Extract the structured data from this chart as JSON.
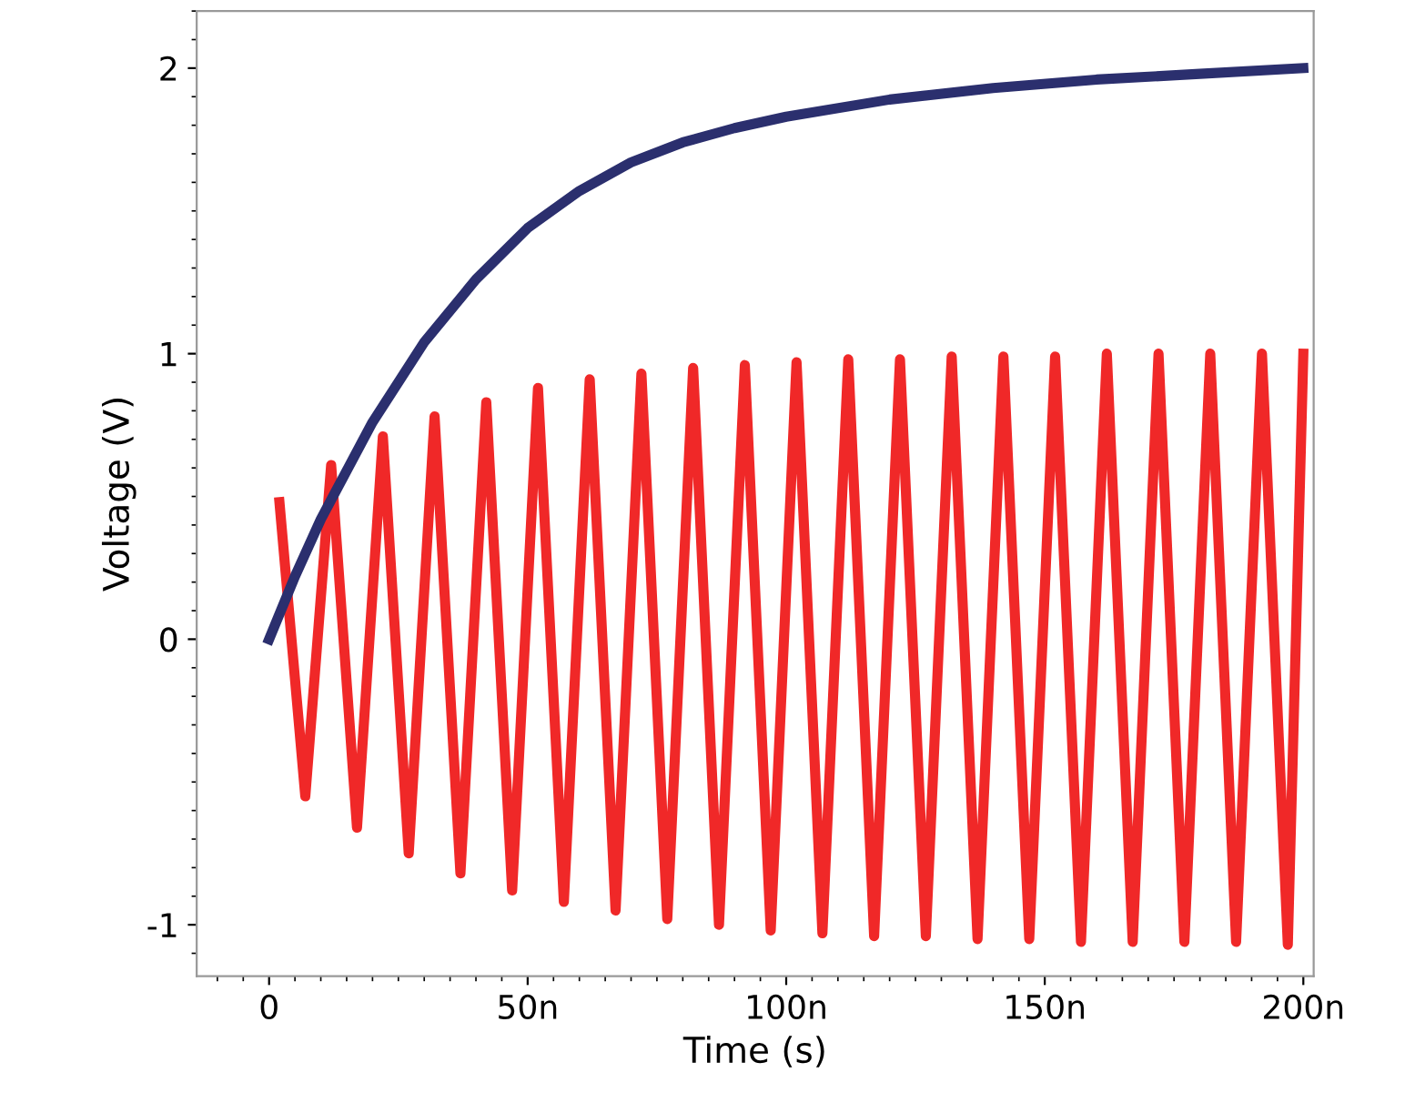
{
  "chart_data": {
    "type": "line",
    "xlabel": "Time (s)",
    "ylabel": "Voltage (V)",
    "xlim": [
      -14,
      202
    ],
    "ylim": [
      -1.18,
      2.2
    ],
    "xticks": [
      0,
      {
        "value": 50,
        "label": "50n"
      },
      {
        "value": 100,
        "label": "100n"
      },
      {
        "value": 150,
        "label": "150n"
      },
      {
        "value": 200,
        "label": "200n"
      }
    ],
    "yticks": [
      -1,
      0,
      1,
      2
    ],
    "grid": false,
    "series": [
      {
        "color": "#f02828",
        "x": [
          2,
          7,
          12,
          17,
          22,
          27,
          32,
          37,
          42,
          47,
          52,
          57,
          62,
          67,
          72,
          77,
          82,
          87,
          92,
          97,
          102,
          107,
          112,
          117,
          122,
          127,
          132,
          137,
          142,
          147,
          152,
          157,
          162,
          167,
          172,
          177,
          182,
          187,
          192,
          197,
          200
        ],
        "values": [
          0.48,
          -0.55,
          0.61,
          -0.66,
          0.71,
          -0.75,
          0.78,
          -0.82,
          0.83,
          -0.88,
          0.88,
          -0.92,
          0.91,
          -0.95,
          0.93,
          -0.98,
          0.95,
          -1.0,
          0.96,
          -1.02,
          0.97,
          -1.03,
          0.98,
          -1.04,
          0.98,
          -1.04,
          0.99,
          -1.05,
          0.99,
          -1.05,
          0.99,
          -1.06,
          1.0,
          -1.06,
          1.0,
          -1.06,
          1.0,
          -1.06,
          1.0,
          -1.07,
          1.0
        ]
      },
      {
        "color": "#2b2f6e",
        "x": [
          0,
          5,
          10,
          20,
          30,
          40,
          50,
          60,
          70,
          80,
          90,
          100,
          120,
          140,
          160,
          180,
          200
        ],
        "values": [
          0,
          0.22,
          0.42,
          0.76,
          1.04,
          1.26,
          1.44,
          1.57,
          1.67,
          1.74,
          1.79,
          1.83,
          1.89,
          1.93,
          1.96,
          1.98,
          2.0
        ]
      }
    ]
  }
}
